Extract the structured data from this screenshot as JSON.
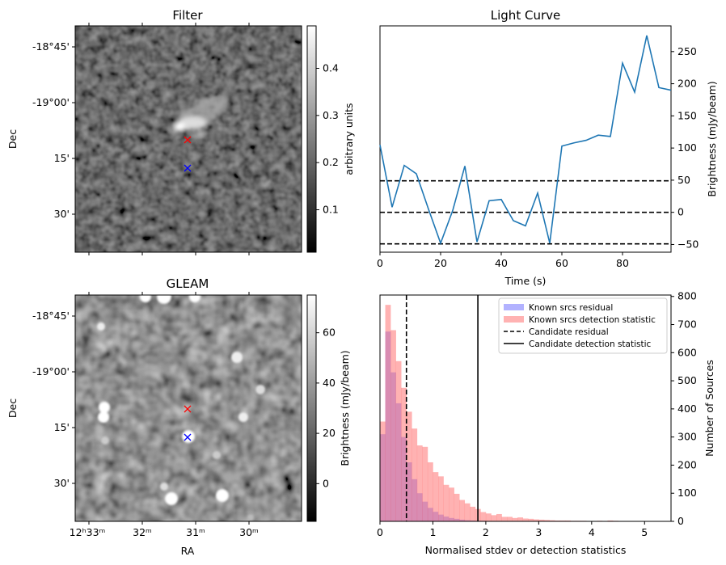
{
  "colors": {
    "line": "#1f77b4",
    "known_residual": "#6666ff",
    "known_detection": "#ff6666",
    "marker_red": "#ff0000",
    "marker_blue": "#0000ff"
  },
  "chart_data": [
    {
      "type": "image",
      "title": "Filter",
      "xlabel": "",
      "ylabel": "Dec",
      "yticks": [
        "-18°45'",
        "-19°00'",
        "15'",
        "30'"
      ],
      "colorbar": {
        "label": "arbitrary units",
        "ticks": [
          "0.1",
          "0.2",
          "0.3",
          "0.4"
        ],
        "range": [
          0.01,
          0.49
        ],
        "tick_values": [
          0.1,
          0.2,
          0.3,
          0.4
        ]
      },
      "markers": [
        {
          "color": "red",
          "label": "x"
        },
        {
          "color": "blue",
          "label": "x"
        }
      ]
    },
    {
      "type": "line",
      "title": "Light Curve",
      "xlabel": "Time (s)",
      "ylabel": "Brightness (mJy/beam)",
      "xlim": [
        0,
        96
      ],
      "ylim": [
        -62,
        290
      ],
      "xticks": [
        "0",
        "20",
        "40",
        "60",
        "80"
      ],
      "yticks": [
        "-50",
        "0",
        "50",
        "100",
        "150",
        "200",
        "250"
      ],
      "x": [
        0,
        4,
        8,
        12,
        16,
        20,
        24,
        28,
        32,
        36,
        40,
        44,
        48,
        52,
        56,
        60,
        64,
        68,
        72,
        76,
        80,
        84,
        88,
        92,
        96
      ],
      "y": [
        105,
        8,
        73,
        60,
        5,
        -48,
        3,
        72,
        -46,
        18,
        20,
        -13,
        -21,
        30,
        -48,
        103,
        108,
        112,
        120,
        118,
        232,
        187,
        275,
        194,
        190
      ],
      "hlines": [
        49,
        0,
        -49
      ]
    },
    {
      "type": "image",
      "title": "GLEAM",
      "xlabel": "RA",
      "ylabel": "Dec",
      "xticks": [
        "12ʰ33ᵐ",
        "32ᵐ",
        "31ᵐ",
        "30ᵐ"
      ],
      "yticks": [
        "-18°45'",
        "-19°00'",
        "15'",
        "30'"
      ],
      "colorbar": {
        "label": "Brightness (mJy/beam)",
        "ticks": [
          "0",
          "20",
          "40",
          "60"
        ],
        "range": [
          -15,
          75
        ],
        "tick_values": [
          0,
          20,
          40,
          60
        ]
      },
      "markers": [
        {
          "color": "red",
          "label": "x"
        },
        {
          "color": "blue",
          "label": "x"
        }
      ]
    },
    {
      "type": "histogram",
      "title": "",
      "xlabel": "Normalised stdev or detection statistics",
      "ylabel": "Number of Sources",
      "xlim": [
        0,
        5.5
      ],
      "ylim": [
        0,
        805
      ],
      "xticks": [
        "0",
        "1",
        "2",
        "3",
        "4",
        "5"
      ],
      "yticks": [
        "0",
        "100",
        "200",
        "300",
        "400",
        "500",
        "600",
        "700",
        "800"
      ],
      "legend_position": "top-right",
      "bin_width": 0.1,
      "series": [
        {
          "name": "Known srcs residual",
          "values": [
            310,
            675,
            530,
            420,
            300,
            210,
            150,
            100,
            70,
            48,
            34,
            24,
            17,
            12,
            9,
            6,
            4,
            3,
            2,
            2,
            1,
            1
          ]
        },
        {
          "name": "Known srcs detection statistic",
          "values": [
            355,
            770,
            680,
            570,
            475,
            390,
            330,
            270,
            265,
            210,
            175,
            160,
            130,
            120,
            98,
            76,
            64,
            52,
            44,
            33,
            28,
            22,
            26,
            16,
            16,
            12,
            14,
            10,
            9,
            7,
            6,
            5,
            4,
            3,
            3,
            3,
            2,
            2,
            2,
            1,
            1,
            2,
            1,
            3,
            2,
            1,
            1,
            1,
            1,
            1
          ]
        }
      ],
      "vlines": [
        {
          "name": "Candidate residual",
          "x": 0.5,
          "style": "dashed"
        },
        {
          "name": "Candidate detection statistic",
          "x": 1.85,
          "style": "solid"
        }
      ]
    }
  ]
}
